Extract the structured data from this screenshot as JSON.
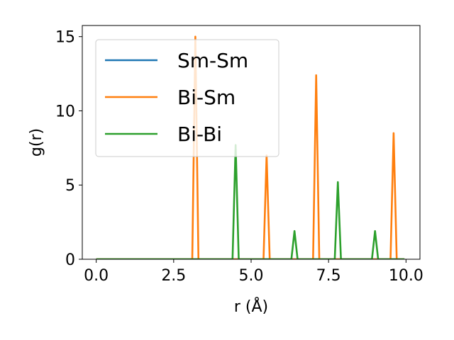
{
  "chart_data": {
    "type": "line",
    "xlabel": "r (Å)",
    "ylabel": "g(r)",
    "xlim": [
      -0.45,
      10.45
    ],
    "ylim": [
      0,
      15.75
    ],
    "xticks": [
      0.0,
      2.5,
      5.0,
      7.5,
      10.0
    ],
    "xtick_labels": [
      "0.0",
      "2.5",
      "5.0",
      "7.5",
      "10.0"
    ],
    "yticks": [
      0,
      5,
      10,
      15
    ],
    "ytick_labels": [
      "0",
      "5",
      "10",
      "15"
    ],
    "grid": false,
    "legend_position": "upper-left",
    "series": [
      {
        "name": "Sm-Sm",
        "color": "#1f77b4",
        "x": [
          0.0,
          9.95
        ],
        "y": [
          0,
          0
        ]
      },
      {
        "name": "Bi-Sm",
        "color": "#ff7f0e",
        "x": [
          0.0,
          3.1,
          3.2,
          3.3,
          5.4,
          5.5,
          5.6,
          7.0,
          7.1,
          7.2,
          9.5,
          9.6,
          9.7,
          9.95
        ],
        "y": [
          0,
          0,
          15.0,
          0,
          0,
          7.0,
          0,
          0,
          12.4,
          0,
          0,
          8.5,
          0,
          0
        ]
      },
      {
        "name": "Bi-Bi",
        "color": "#2ca02c",
        "x": [
          0.0,
          4.4,
          4.5,
          4.6,
          6.3,
          6.4,
          6.5,
          7.7,
          7.8,
          7.9,
          8.9,
          9.0,
          9.1,
          9.95
        ],
        "y": [
          0,
          0,
          7.7,
          0,
          0,
          1.9,
          0,
          0,
          5.2,
          0,
          0,
          1.9,
          0,
          0
        ]
      }
    ]
  }
}
